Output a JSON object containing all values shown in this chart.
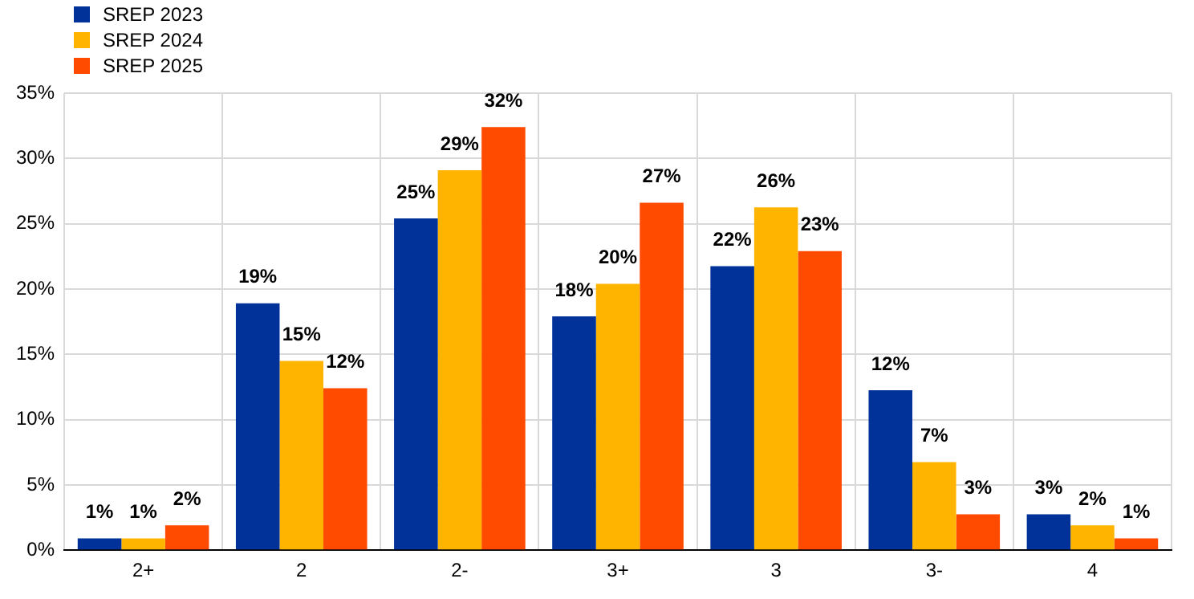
{
  "chart_data": {
    "type": "bar",
    "categories": [
      "2+",
      "2",
      "2-",
      "3+",
      "3",
      "3-",
      "4"
    ],
    "series": [
      {
        "name": "SREP 2023",
        "color": "#003299",
        "values": [
          0.9,
          18.9,
          25.4,
          17.9,
          21.75,
          12.25,
          2.75
        ],
        "value_labels": [
          "1%",
          "19%",
          "25%",
          "18%",
          "22%",
          "12%",
          "3%"
        ]
      },
      {
        "name": "SREP 2024",
        "color": "#ffb400",
        "values": [
          0.9,
          14.5,
          29.1,
          20.4,
          26.25,
          6.75,
          1.9
        ],
        "value_labels": [
          "1%",
          "15%",
          "29%",
          "20%",
          "26%",
          "7%",
          "2%"
        ]
      },
      {
        "name": "SREP 2025",
        "color": "#ff4b00",
        "values": [
          1.9,
          12.4,
          32.4,
          26.6,
          22.9,
          2.75,
          0.9
        ],
        "value_labels": [
          "2%",
          "12%",
          "32%",
          "27%",
          "23%",
          "3%",
          "1%"
        ]
      }
    ],
    "ylim": [
      0,
      35
    ],
    "yticks": [
      {
        "value": 0,
        "label": "0%"
      },
      {
        "value": 5,
        "label": "5%"
      },
      {
        "value": 10,
        "label": "10%"
      },
      {
        "value": 15,
        "label": "15%"
      },
      {
        "value": 20,
        "label": "20%"
      },
      {
        "value": 25,
        "label": "25%"
      },
      {
        "value": 30,
        "label": "30%"
      },
      {
        "value": 35,
        "label": "35%"
      }
    ],
    "grid": true,
    "legend": "top left"
  }
}
